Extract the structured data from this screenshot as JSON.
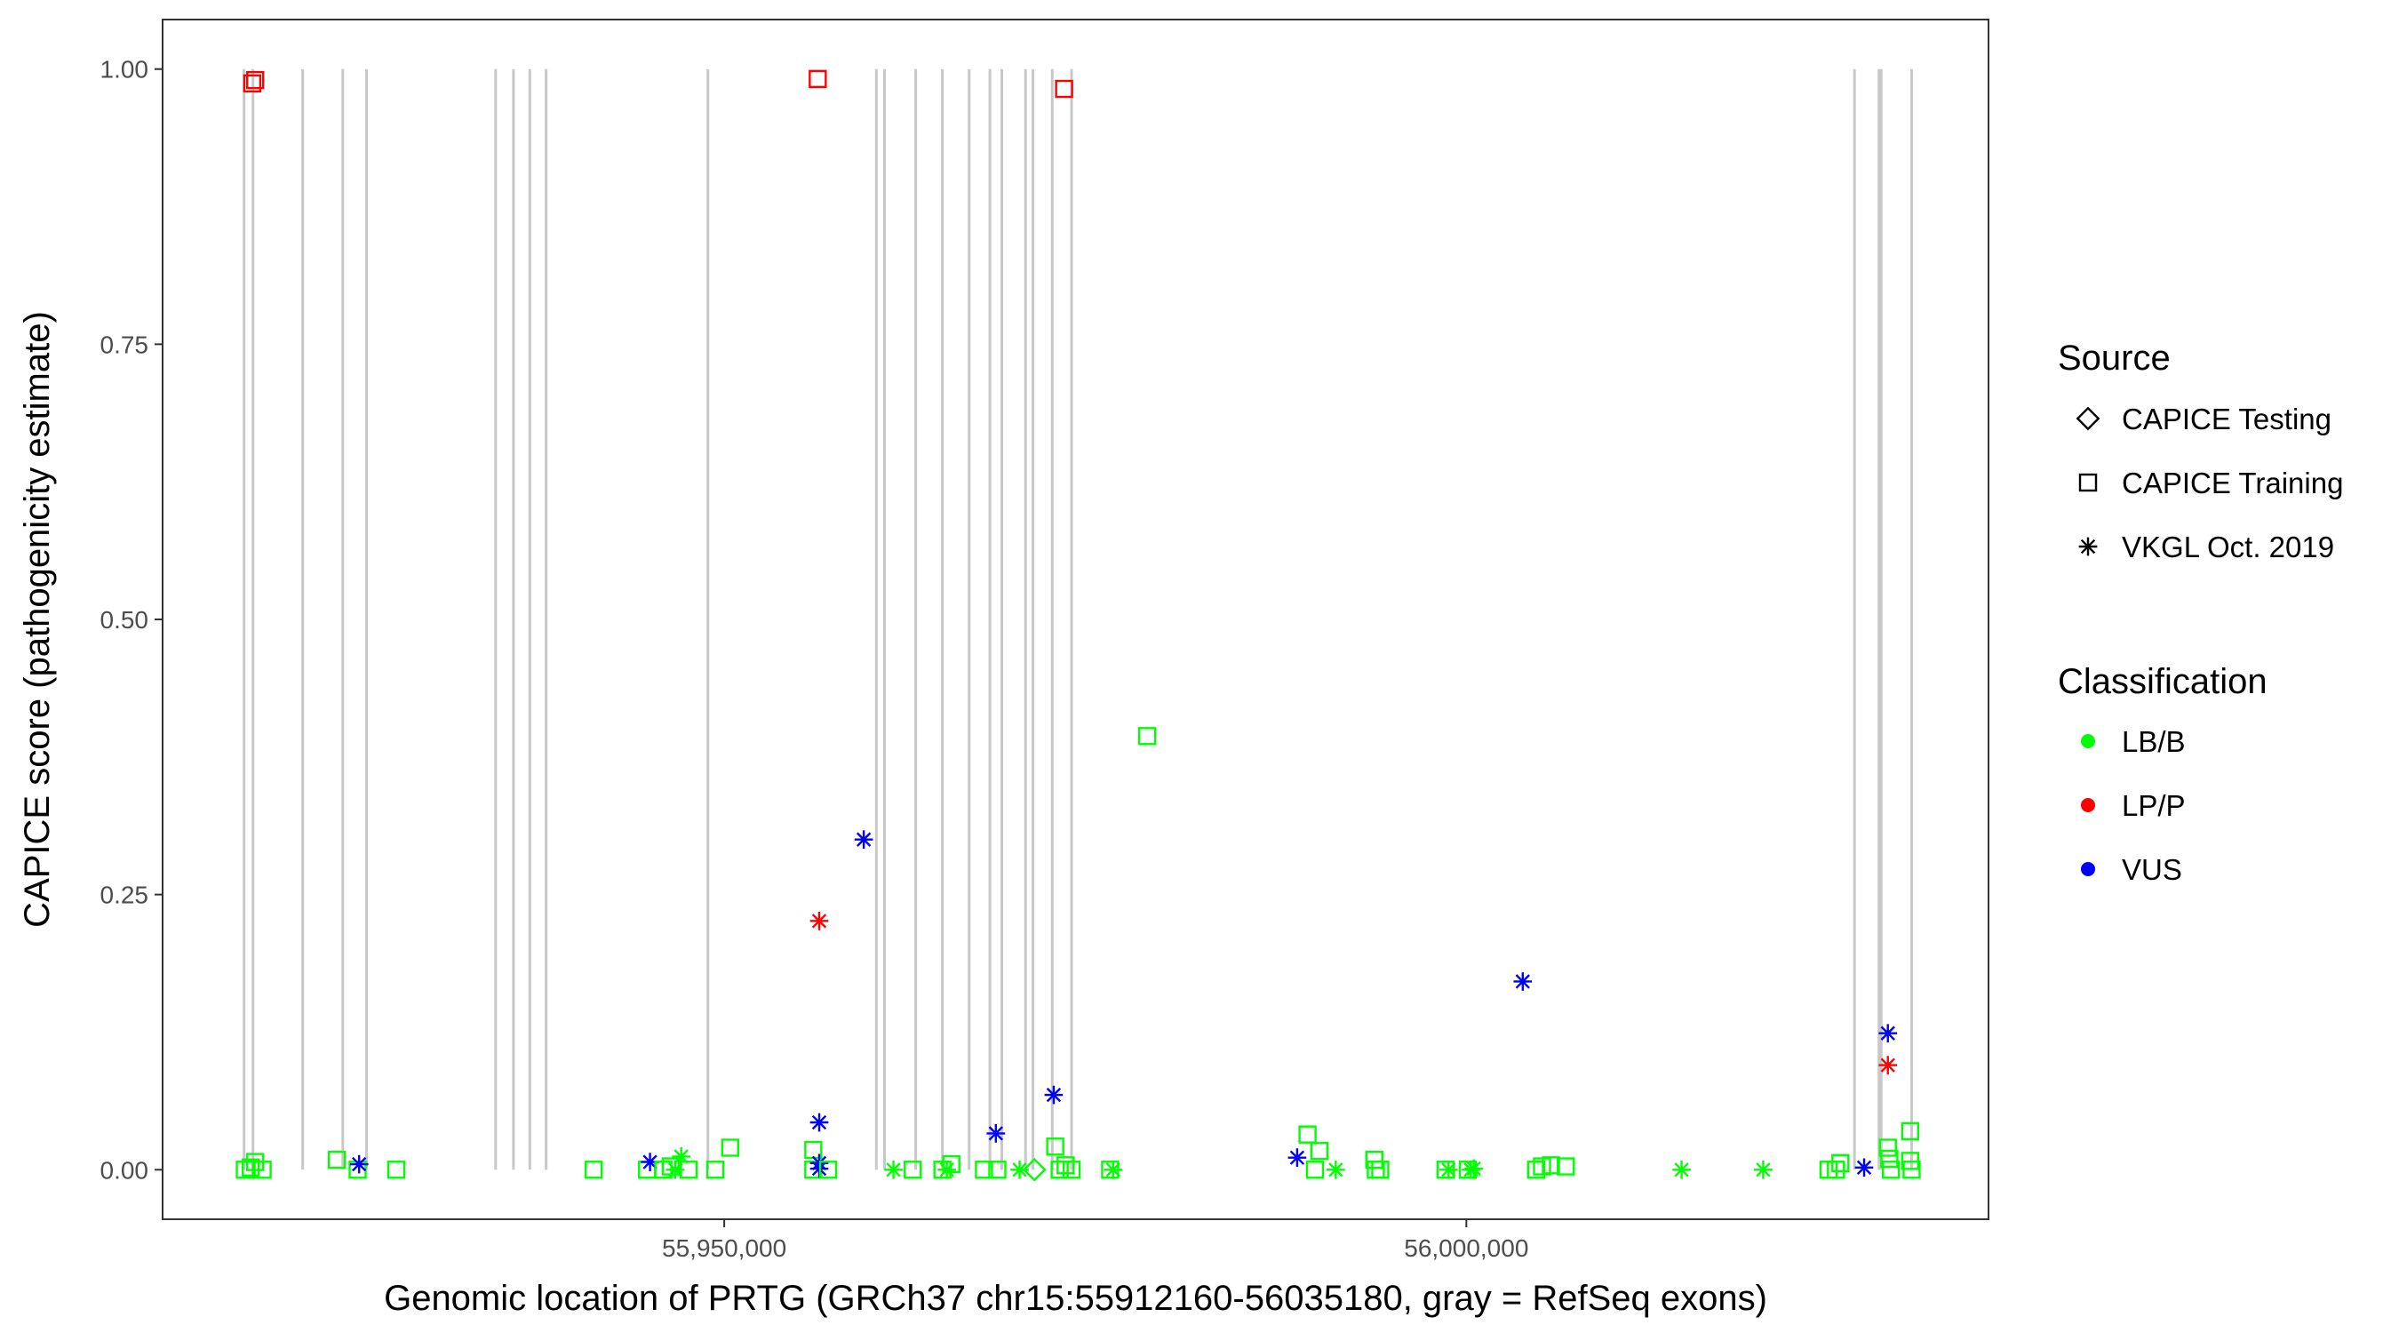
{
  "chart_data": {
    "type": "scatter",
    "title": "",
    "xlabel": "Genomic location of PRTG (GRCh37 chr15:55912160-56035180, gray = RefSeq exons)",
    "ylabel": "CAPICE score (pathogenicity estimate)",
    "xlim": [
      55912160,
      56035180
    ],
    "ylim": [
      -0.045,
      1.045
    ],
    "x_ticks": [
      55950000,
      56000000
    ],
    "x_tick_labels": [
      "55,950,000",
      "56,000,000"
    ],
    "y_ticks": [
      0,
      0.25,
      0.5,
      0.75,
      1.0
    ],
    "y_tick_labels": [
      "0.00",
      "0.25",
      "0.50",
      "0.75",
      "1.00"
    ],
    "grid": false,
    "legend_placement": "right",
    "exons": [
      55917650,
      55918250,
      55921600,
      55924300,
      55925900,
      55934600,
      55935800,
      55936900,
      55938000,
      55948900,
      55960250,
      55960800,
      55962900,
      55964700,
      55966500,
      55967900,
      55968700,
      55970300,
      55970800,
      55972100,
      55973400,
      56026150,
      56027800,
      56027950,
      56030000
    ],
    "source_legend": {
      "title": "Source",
      "items": [
        {
          "label": "CAPICE Testing",
          "shape": "diamond"
        },
        {
          "label": "CAPICE Training",
          "shape": "square"
        },
        {
          "label": "VKGL Oct. 2019",
          "shape": "asterisk"
        }
      ]
    },
    "classification_legend": {
      "title": "Classification",
      "items": [
        {
          "label": "LB/B",
          "color": "#00ff00"
        },
        {
          "label": "LP/P",
          "color": "#ff0000"
        },
        {
          "label": "VUS",
          "color": "#0000ff"
        }
      ]
    },
    "colors": {
      "LB/B": "#00ff00",
      "LP/P": "#ff0000",
      "VUS": "#0000ff"
    },
    "points": [
      {
        "x": 55917700,
        "y": 0.0,
        "shape": "square",
        "class": "LB/B"
      },
      {
        "x": 55918100,
        "y": 0.002,
        "shape": "square",
        "class": "LB/B"
      },
      {
        "x": 55918400,
        "y": 0.007,
        "shape": "square",
        "class": "LB/B"
      },
      {
        "x": 55918900,
        "y": 0.0,
        "shape": "square",
        "class": "LB/B"
      },
      {
        "x": 55918200,
        "y": 0.987,
        "shape": "square",
        "class": "LP/P"
      },
      {
        "x": 55918400,
        "y": 0.99,
        "shape": "square",
        "class": "LP/P"
      },
      {
        "x": 55923900,
        "y": 0.009,
        "shape": "square",
        "class": "LB/B"
      },
      {
        "x": 55925300,
        "y": 0.0,
        "shape": "square",
        "class": "LB/B"
      },
      {
        "x": 55925400,
        "y": 0.005,
        "shape": "asterisk",
        "class": "VUS"
      },
      {
        "x": 55927900,
        "y": 0.0,
        "shape": "square",
        "class": "LB/B"
      },
      {
        "x": 55941200,
        "y": 0.0,
        "shape": "square",
        "class": "LB/B"
      },
      {
        "x": 55944800,
        "y": 0.0,
        "shape": "square",
        "class": "LB/B"
      },
      {
        "x": 55945000,
        "y": 0.007,
        "shape": "asterisk",
        "class": "VUS"
      },
      {
        "x": 55945900,
        "y": 0.0,
        "shape": "square",
        "class": "LB/B"
      },
      {
        "x": 55946400,
        "y": 0.003,
        "shape": "square",
        "class": "LB/B"
      },
      {
        "x": 55946700,
        "y": 0.0,
        "shape": "asterisk",
        "class": "LB/B"
      },
      {
        "x": 55947100,
        "y": 0.012,
        "shape": "asterisk",
        "class": "LB/B"
      },
      {
        "x": 55947600,
        "y": 0.0,
        "shape": "square",
        "class": "LB/B"
      },
      {
        "x": 55949400,
        "y": 0.0,
        "shape": "square",
        "class": "LB/B"
      },
      {
        "x": 55950400,
        "y": 0.02,
        "shape": "square",
        "class": "LB/B"
      },
      {
        "x": 55956000,
        "y": 0.0,
        "shape": "square",
        "class": "LB/B"
      },
      {
        "x": 55956000,
        "y": 0.018,
        "shape": "square",
        "class": "LB/B"
      },
      {
        "x": 55956300,
        "y": 0.991,
        "shape": "square",
        "class": "LP/P"
      },
      {
        "x": 55956400,
        "y": 0.226,
        "shape": "asterisk",
        "class": "LP/P"
      },
      {
        "x": 55956400,
        "y": 0.043,
        "shape": "asterisk",
        "class": "VUS"
      },
      {
        "x": 55956400,
        "y": 0.006,
        "shape": "asterisk",
        "class": "VUS"
      },
      {
        "x": 55956400,
        "y": 0.001,
        "shape": "asterisk",
        "class": "VUS"
      },
      {
        "x": 55957000,
        "y": 0.0,
        "shape": "square",
        "class": "LB/B"
      },
      {
        "x": 55959400,
        "y": 0.3,
        "shape": "asterisk",
        "class": "VUS"
      },
      {
        "x": 55961400,
        "y": 0.0,
        "shape": "asterisk",
        "class": "LB/B"
      },
      {
        "x": 55962700,
        "y": 0.0,
        "shape": "square",
        "class": "LB/B"
      },
      {
        "x": 55964700,
        "y": 0.0,
        "shape": "square",
        "class": "LB/B"
      },
      {
        "x": 55965000,
        "y": 0.0,
        "shape": "asterisk",
        "class": "LB/B"
      },
      {
        "x": 55965300,
        "y": 0.005,
        "shape": "square",
        "class": "LB/B"
      },
      {
        "x": 55967500,
        "y": 0.0,
        "shape": "square",
        "class": "LB/B"
      },
      {
        "x": 55968300,
        "y": 0.033,
        "shape": "asterisk",
        "class": "VUS"
      },
      {
        "x": 55968400,
        "y": 0.0,
        "shape": "square",
        "class": "LB/B"
      },
      {
        "x": 55969900,
        "y": 0.0,
        "shape": "asterisk",
        "class": "LB/B"
      },
      {
        "x": 55970900,
        "y": 0.0,
        "shape": "diamond",
        "class": "LB/B"
      },
      {
        "x": 55972200,
        "y": 0.068,
        "shape": "asterisk",
        "class": "VUS"
      },
      {
        "x": 55972300,
        "y": 0.021,
        "shape": "square",
        "class": "LB/B"
      },
      {
        "x": 55972600,
        "y": 0.0,
        "shape": "square",
        "class": "LB/B"
      },
      {
        "x": 55972900,
        "y": 0.982,
        "shape": "square",
        "class": "LP/P"
      },
      {
        "x": 55973000,
        "y": 0.004,
        "shape": "square",
        "class": "LB/B"
      },
      {
        "x": 55973400,
        "y": 0.0,
        "shape": "square",
        "class": "LB/B"
      },
      {
        "x": 55976000,
        "y": 0.0,
        "shape": "square",
        "class": "LB/B"
      },
      {
        "x": 55976200,
        "y": 0.0,
        "shape": "asterisk",
        "class": "LB/B"
      },
      {
        "x": 55978500,
        "y": 0.394,
        "shape": "square",
        "class": "LB/B"
      },
      {
        "x": 55988600,
        "y": 0.011,
        "shape": "asterisk",
        "class": "VUS"
      },
      {
        "x": 55989300,
        "y": 0.032,
        "shape": "square",
        "class": "LB/B"
      },
      {
        "x": 55989800,
        "y": 0.0,
        "shape": "square",
        "class": "LB/B"
      },
      {
        "x": 55990100,
        "y": 0.017,
        "shape": "square",
        "class": "LB/B"
      },
      {
        "x": 55991200,
        "y": 0.0,
        "shape": "asterisk",
        "class": "LB/B"
      },
      {
        "x": 55993800,
        "y": 0.009,
        "shape": "square",
        "class": "LB/B"
      },
      {
        "x": 55993900,
        "y": 0.0,
        "shape": "square",
        "class": "LB/B"
      },
      {
        "x": 55994200,
        "y": 0.0,
        "shape": "square",
        "class": "LB/B"
      },
      {
        "x": 55998600,
        "y": 0.0,
        "shape": "square",
        "class": "LB/B"
      },
      {
        "x": 55998800,
        "y": 0.0,
        "shape": "asterisk",
        "class": "LB/B"
      },
      {
        "x": 56000100,
        "y": 0.0,
        "shape": "square",
        "class": "LB/B"
      },
      {
        "x": 56000300,
        "y": 0.0,
        "shape": "asterisk",
        "class": "LB/B"
      },
      {
        "x": 56000500,
        "y": 0.001,
        "shape": "asterisk",
        "class": "LB/B"
      },
      {
        "x": 56003800,
        "y": 0.171,
        "shape": "asterisk",
        "class": "VUS"
      },
      {
        "x": 56004700,
        "y": 0.0,
        "shape": "square",
        "class": "LB/B"
      },
      {
        "x": 56005100,
        "y": 0.003,
        "shape": "square",
        "class": "LB/B"
      },
      {
        "x": 56005700,
        "y": 0.004,
        "shape": "square",
        "class": "LB/B"
      },
      {
        "x": 56006700,
        "y": 0.003,
        "shape": "square",
        "class": "LB/B"
      },
      {
        "x": 56014500,
        "y": 0.0,
        "shape": "asterisk",
        "class": "LB/B"
      },
      {
        "x": 56020000,
        "y": 0.0,
        "shape": "asterisk",
        "class": "LB/B"
      },
      {
        "x": 56024400,
        "y": 0.0,
        "shape": "square",
        "class": "LB/B"
      },
      {
        "x": 56024900,
        "y": 0.0,
        "shape": "square",
        "class": "LB/B"
      },
      {
        "x": 56025200,
        "y": 0.006,
        "shape": "square",
        "class": "LB/B"
      },
      {
        "x": 56026800,
        "y": 0.002,
        "shape": "asterisk",
        "class": "VUS"
      },
      {
        "x": 56028400,
        "y": 0.124,
        "shape": "asterisk",
        "class": "VUS"
      },
      {
        "x": 56028400,
        "y": 0.095,
        "shape": "asterisk",
        "class": "LP/P"
      },
      {
        "x": 56028400,
        "y": 0.02,
        "shape": "square",
        "class": "LB/B"
      },
      {
        "x": 56028500,
        "y": 0.01,
        "shape": "square",
        "class": "LB/B"
      },
      {
        "x": 56028600,
        "y": 0.0,
        "shape": "square",
        "class": "LB/B"
      },
      {
        "x": 56029900,
        "y": 0.035,
        "shape": "square",
        "class": "LB/B"
      },
      {
        "x": 56029900,
        "y": 0.008,
        "shape": "square",
        "class": "LB/B"
      },
      {
        "x": 56030000,
        "y": 0.0,
        "shape": "square",
        "class": "LB/B"
      }
    ]
  }
}
